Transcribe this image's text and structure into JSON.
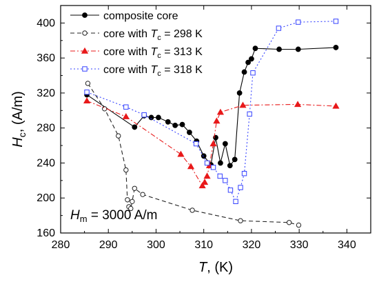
{
  "chart_data": {
    "type": "line",
    "xlabel": {
      "main": "T",
      "unit": ", (K)"
    },
    "ylabel": {
      "main": "H",
      "sub": "c",
      "unit": ", (A/m)"
    },
    "xlim": [
      280,
      345
    ],
    "ylim": [
      160,
      420
    ],
    "xticks": [
      280,
      290,
      300,
      310,
      320,
      330,
      340
    ],
    "yticks": [
      160,
      200,
      240,
      280,
      320,
      360,
      400
    ],
    "grid": false,
    "legend_position": "top-left",
    "annotation": {
      "main": "H",
      "sub": "m",
      "rest": " = 3000 A/m"
    },
    "series": [
      {
        "name": "composite core",
        "legend_label": {
          "pre": "composite core",
          "sub": "",
          "post": ""
        },
        "color": "#000000",
        "dash": "",
        "marker": "filled-circle",
        "x": [
          285.5,
          295.5,
          297.5,
          299.0,
          300.5,
          302.5,
          304.0,
          305.5,
          307.0,
          308.5,
          310.0,
          311.5,
          312.5,
          313.5,
          314.5,
          315.5,
          316.5,
          317.5,
          318.5,
          319.3,
          320.0,
          320.8,
          325.8,
          329.8,
          337.7
        ],
        "y": [
          318,
          281,
          294,
          292,
          292,
          287,
          283,
          284,
          275,
          265,
          248,
          238,
          269,
          240,
          262,
          237,
          244,
          320,
          344,
          355,
          359,
          371,
          370,
          370,
          372
        ]
      },
      {
        "name": "core with Tc = 298 K",
        "legend_label": {
          "pre": "core with ",
          "it": "T",
          "sub": "c",
          "post": " = 298 K"
        },
        "color": "#222222",
        "dash": "6,4",
        "marker": "open-circle",
        "x": [
          285.7,
          289.2,
          292.1,
          293.7,
          294.0,
          294.3,
          294.7,
          295.0,
          295.5,
          297.2,
          307.6,
          317.7,
          327.9,
          329.9
        ],
        "y": [
          331,
          302,
          271,
          232,
          198,
          190,
          188,
          196,
          211,
          204,
          186,
          174,
          172,
          169
        ]
      },
      {
        "name": "core with Tc = 313 K",
        "legend_label": {
          "pre": "core with ",
          "it": "T",
          "sub": "c",
          "post": " = 313 K"
        },
        "color": "#e8191a",
        "dash": "7,3,2,3",
        "marker": "filled-triangle",
        "x": [
          285.5,
          293.7,
          305.2,
          307.3,
          309.7,
          310.2,
          310.7,
          311.2,
          312.0,
          312.7,
          313.5,
          318.2,
          329.7,
          337.7
        ],
        "y": [
          311,
          293,
          250,
          236,
          214,
          218,
          225,
          237,
          262,
          288,
          298,
          306,
          307,
          305
        ]
      },
      {
        "name": "core with Tc = 318 K",
        "legend_label": {
          "pre": "core with ",
          "it": "T",
          "sub": "c",
          "post": " = 318 K"
        },
        "color": "#3340ff",
        "dash": "2,3",
        "marker": "open-square",
        "x": [
          285.5,
          293.7,
          297.5,
          308.4,
          310.7,
          312.0,
          313.4,
          314.5,
          315.6,
          316.7,
          317.7,
          318.5,
          319.6,
          320.3,
          325.7,
          329.8,
          337.7
        ],
        "y": [
          321,
          304,
          295,
          262,
          240,
          235,
          225,
          220,
          209,
          196,
          212,
          228,
          296,
          343,
          394,
          401,
          402
        ]
      }
    ]
  }
}
